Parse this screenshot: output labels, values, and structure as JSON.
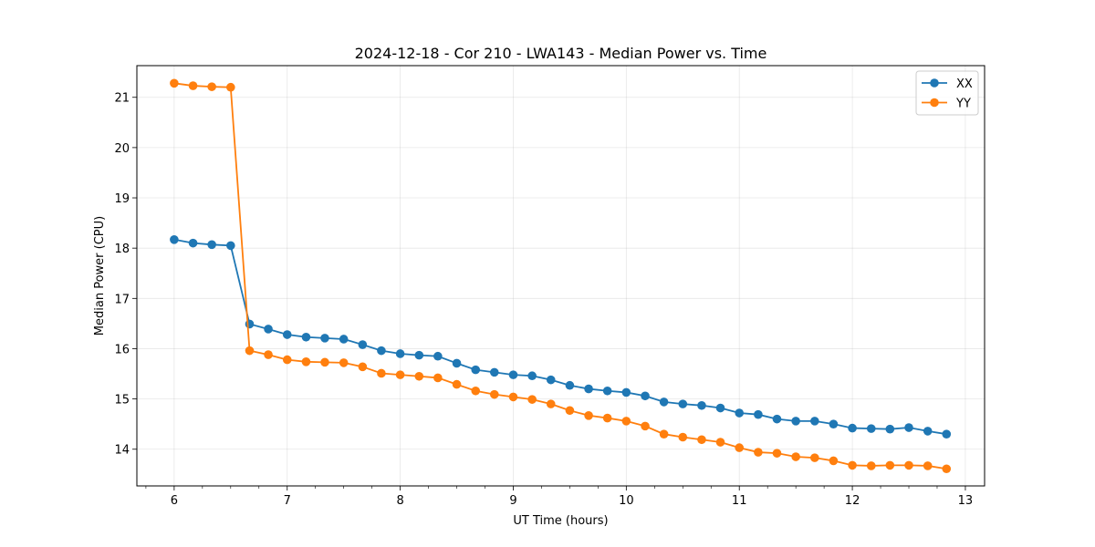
{
  "chart_data": {
    "type": "line",
    "title": "2024-12-18 - Cor 210 - LWA143 - Median Power vs. Time",
    "xlabel": "UT Time (hours)",
    "ylabel": "Median Power (CPU)",
    "xlim": [
      5.67,
      13.17
    ],
    "ylim": [
      13.27,
      21.63
    ],
    "xticks": [
      6,
      7,
      8,
      9,
      10,
      11,
      12,
      13
    ],
    "yticks": [
      14,
      15,
      16,
      17,
      18,
      19,
      20,
      21
    ],
    "grid": true,
    "legend_loc": "upper right",
    "x": [
      6.0,
      6.167,
      6.333,
      6.5,
      6.667,
      6.833,
      7.0,
      7.167,
      7.333,
      7.5,
      7.667,
      7.833,
      8.0,
      8.167,
      8.333,
      8.5,
      8.667,
      8.833,
      9.0,
      9.167,
      9.333,
      9.5,
      9.667,
      9.833,
      10.0,
      10.167,
      10.333,
      10.5,
      10.667,
      10.833,
      11.0,
      11.167,
      11.333,
      11.5,
      11.667,
      11.833,
      12.0,
      12.167,
      12.333,
      12.5,
      12.667,
      12.833
    ],
    "series": [
      {
        "name": "XX",
        "color": "#1f77b4",
        "values": [
          18.17,
          18.1,
          18.07,
          18.05,
          16.49,
          16.39,
          16.28,
          16.23,
          16.21,
          16.19,
          16.08,
          15.96,
          15.9,
          15.87,
          15.85,
          15.71,
          15.58,
          15.53,
          15.48,
          15.46,
          15.38,
          15.27,
          15.2,
          15.16,
          15.13,
          15.06,
          14.94,
          14.9,
          14.87,
          14.82,
          14.72,
          14.69,
          14.6,
          14.56,
          14.56,
          14.5,
          14.42,
          14.41,
          14.4,
          14.43,
          14.36,
          14.3
        ]
      },
      {
        "name": "YY",
        "color": "#ff7f0e",
        "values": [
          21.28,
          21.23,
          21.21,
          21.2,
          15.96,
          15.88,
          15.78,
          15.74,
          15.73,
          15.72,
          15.64,
          15.51,
          15.48,
          15.45,
          15.42,
          15.29,
          15.16,
          15.09,
          15.04,
          14.99,
          14.9,
          14.77,
          14.67,
          14.62,
          14.56,
          14.46,
          14.3,
          14.24,
          14.19,
          14.14,
          14.03,
          13.94,
          13.92,
          13.85,
          13.83,
          13.77,
          13.68,
          13.67,
          13.68,
          13.68,
          13.67,
          13.61
        ]
      }
    ]
  }
}
